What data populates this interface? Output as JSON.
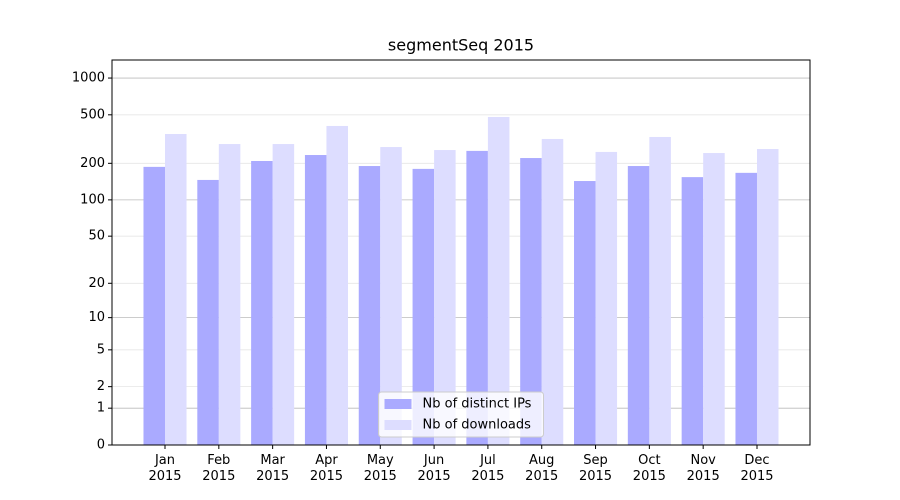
{
  "chart_data": {
    "type": "bar",
    "title": "segmentSeq 2015",
    "categories": [
      "Jan\n2015",
      "Feb\n2015",
      "Mar\n2015",
      "Apr\n2015",
      "May\n2015",
      "Jun\n2015",
      "Jul\n2015",
      "Aug\n2015",
      "Sep\n2015",
      "Oct\n2015",
      "Nov\n2015",
      "Dec\n2015"
    ],
    "series": [
      {
        "name": "Nb of distinct IPs",
        "color": "#aaaaff",
        "values": [
          187,
          146,
          209,
          234,
          190,
          180,
          253,
          221,
          143,
          190,
          154,
          167
        ]
      },
      {
        "name": "Nb of downloads",
        "color": "#ddddff",
        "values": [
          348,
          288,
          288,
          405,
          272,
          257,
          480,
          317,
          248,
          329,
          243,
          262
        ]
      }
    ],
    "yscale": "log1p",
    "ylim": [
      0,
      1405
    ],
    "yticks": [
      0,
      1,
      2,
      5,
      10,
      20,
      50,
      100,
      200,
      500,
      1000
    ],
    "grid": true,
    "legend": "lower center"
  }
}
